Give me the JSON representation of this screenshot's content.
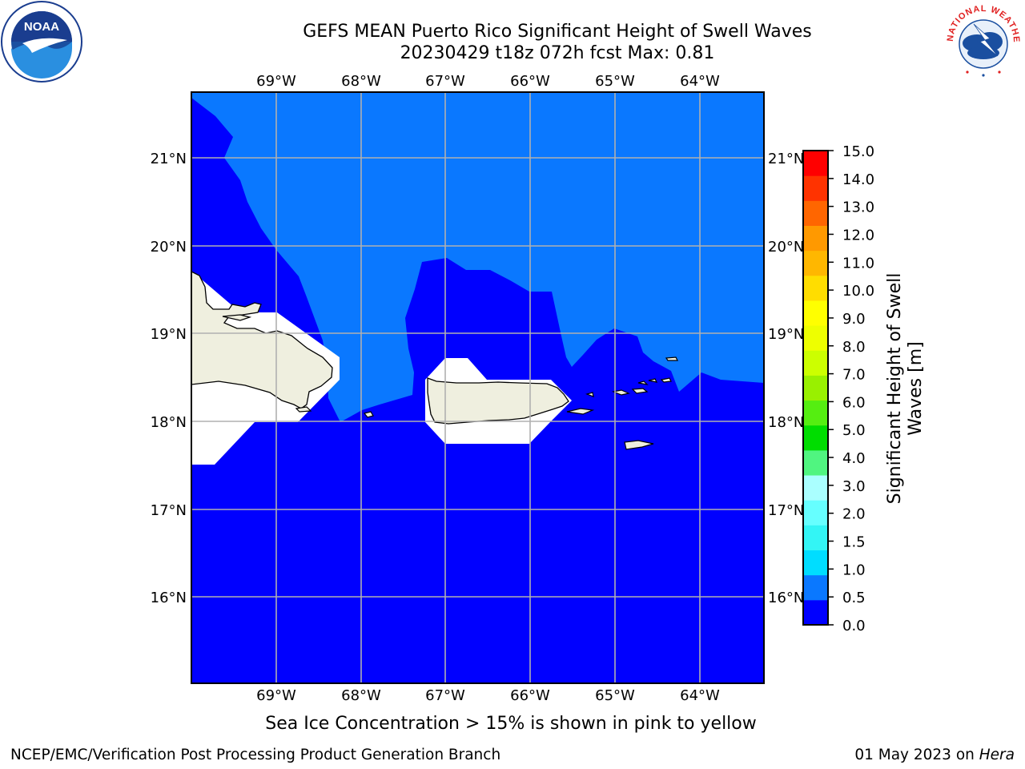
{
  "title_line1": "GEFS MEAN Puerto Rico Significant Height of Swell Waves",
  "title_line2": "20230429 t18z 072h fcst   Max: 0.81",
  "longitude_labels": [
    "69°W",
    "68°W",
    "67°W",
    "66°W",
    "65°W",
    "64°W"
  ],
  "latitude_labels": [
    "21°N",
    "20°N",
    "19°N",
    "18°N",
    "17°N",
    "16°N"
  ],
  "colorbar": {
    "label": "Significant Height of Swell Waves [m]",
    "label_lines": [
      "Significant Height of Swell",
      "Waves [m]"
    ],
    "ticks": [
      "0.0",
      "0.5",
      "1.0",
      "1.5",
      "2.0",
      "3.0",
      "4.0",
      "5.0",
      "6.0",
      "7.0",
      "8.0",
      "9.0",
      "10.0",
      "11.0",
      "12.0",
      "13.0",
      "14.0",
      "15.0"
    ],
    "colors": [
      "#0000ff",
      "#0a78ff",
      "#00ddff",
      "#33f5f5",
      "#66ffff",
      "#aaffff",
      "#50f580",
      "#00dd00",
      "#55ee11",
      "#99f000",
      "#ccff00",
      "#eeff00",
      "#ffff00",
      "#ffdd00",
      "#ffb700",
      "#ff9900",
      "#ff6600",
      "#ff3300",
      "#ff0000"
    ]
  },
  "map_colors": {
    "deep_swell": "#0000ff",
    "light_swell": "#0a78ff",
    "land": "#efefdf",
    "grid": "#b0b0b0"
  },
  "sea_ice_note": "Sea Ice Concentration > 15% is shown in pink to yellow",
  "footer_left": "NCEP/EMC/Verification Post Processing Product Generation Branch",
  "footer_date": "01 May 2023 on ",
  "footer_host": "Hera",
  "logos": {
    "left": "NOAA",
    "right": "NATIONAL WEATHER SERVICE"
  }
}
